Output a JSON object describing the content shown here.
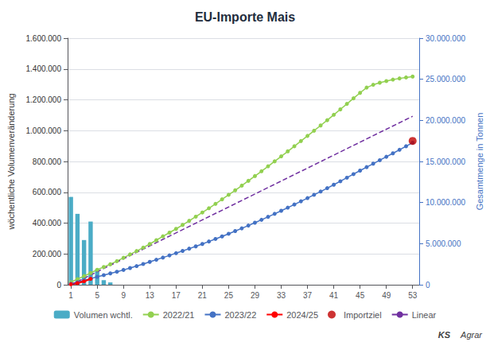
{
  "chart_data": {
    "type": "bar",
    "title": "EU-Importe Mais",
    "ylabel": "wöchentliche Volumenveränderung",
    "y2label": "Gesamtmenge in Tonnen",
    "xlim": [
      0.5,
      54
    ],
    "xticks": [
      1,
      5,
      9,
      13,
      17,
      21,
      25,
      29,
      33,
      37,
      41,
      45,
      49,
      53
    ],
    "ylim": [
      0,
      1600000
    ],
    "yticks": [
      0,
      {
        "value": 200000,
        "label": "200.000"
      },
      {
        "value": 400000,
        "label": "400.000"
      },
      {
        "value": 600000,
        "label": "600.000"
      },
      {
        "value": 800000,
        "label": "800.000"
      },
      {
        "value": 1000000,
        "label": "1.000.000"
      },
      {
        "value": 1200000,
        "label": "1.200.000"
      },
      {
        "value": 1400000,
        "label": "1.400.000"
      },
      {
        "value": 1600000,
        "label": "1.600.000"
      }
    ],
    "y2lim": [
      0,
      30000000
    ],
    "y2ticks": [
      0,
      {
        "value": 5000000,
        "label": "5.000.000"
      },
      {
        "value": 10000000,
        "label": "10.000.000"
      },
      {
        "value": 15000000,
        "label": "15.000.000"
      },
      {
        "value": 20000000,
        "label": "20.000.000"
      },
      {
        "value": 25000000,
        "label": "25.000.000"
      },
      {
        "value": 30000000,
        "label": "30.000.000"
      }
    ],
    "grid": true,
    "legend": "bottom",
    "annotations": [
      "KS",
      "Agrar"
    ],
    "series": [
      {
        "name": "Volumen wchtl.",
        "type": "bar",
        "color": "#4bacc6",
        "x": [
          1,
          2,
          3,
          4,
          5,
          6,
          7
        ],
        "values": [
          570000,
          460000,
          290000,
          410000,
          100000,
          30000,
          15000
        ]
      },
      {
        "name": "2022/21",
        "type": "line",
        "axis": "y2",
        "color": "#92d050",
        "marker": "circle",
        "x": [
          1,
          2,
          3,
          4,
          5,
          6,
          7,
          8,
          9,
          10,
          11,
          12,
          13,
          14,
          15,
          16,
          17,
          18,
          19,
          20,
          21,
          22,
          23,
          24,
          25,
          26,
          27,
          28,
          29,
          30,
          31,
          32,
          33,
          34,
          35,
          36,
          37,
          38,
          39,
          40,
          41,
          42,
          43,
          44,
          45,
          46,
          47,
          48,
          49,
          50,
          51,
          52,
          53
        ],
        "values": [
          320000,
          680000,
          1050000,
          1430000,
          1820000,
          2160000,
          2490000,
          2870000,
          3280000,
          3690000,
          4100000,
          4510000,
          4960000,
          5420000,
          5890000,
          6340000,
          6800000,
          7280000,
          7780000,
          8280000,
          8790000,
          9310000,
          9840000,
          10390000,
          10940000,
          11490000,
          12060000,
          12640000,
          13220000,
          13810000,
          14410000,
          15010000,
          15620000,
          16230000,
          16850000,
          17480000,
          18110000,
          18740000,
          19380000,
          20020000,
          20680000,
          21340000,
          22010000,
          22680000,
          23350000,
          23990000,
          24330000,
          24580000,
          24780000,
          24960000,
          25100000,
          25220000,
          25330000
        ]
      },
      {
        "name": "2023/22",
        "type": "line",
        "axis": "y2",
        "color": "#4472c4",
        "marker": "circle",
        "x": [
          1,
          2,
          3,
          4,
          5,
          6,
          7,
          8,
          9,
          10,
          11,
          12,
          13,
          14,
          15,
          16,
          17,
          18,
          19,
          20,
          21,
          22,
          23,
          24,
          25,
          26,
          27,
          28,
          29,
          30,
          31,
          32,
          33,
          34,
          35,
          36,
          37,
          38,
          39,
          40,
          41,
          42,
          43,
          44,
          45,
          46,
          47,
          48,
          49,
          50,
          51,
          52,
          53
        ],
        "values": [
          130000,
          310000,
          520000,
          740000,
          960000,
          1170000,
          1380000,
          1580000,
          1800000,
          2030000,
          2270000,
          2520000,
          2780000,
          3040000,
          3300000,
          3570000,
          3840000,
          4110000,
          4390000,
          4670000,
          4960000,
          5260000,
          5570000,
          5880000,
          6200000,
          6530000,
          6860000,
          7200000,
          7550000,
          7900000,
          8260000,
          8630000,
          9000000,
          9380000,
          9760000,
          10150000,
          10540000,
          10940000,
          11340000,
          11750000,
          12170000,
          12590000,
          13020000,
          13460000,
          13890000,
          14310000,
          14730000,
          15150000,
          15570000,
          15990000,
          16420000,
          16850000,
          17280000
        ]
      },
      {
        "name": "2024/25",
        "type": "line",
        "axis": "y2",
        "color": "#ff0000",
        "marker": "circle",
        "x": [
          1,
          2,
          3,
          4
        ],
        "values": [
          65000,
          200000,
          420000,
          720000
        ]
      },
      {
        "name": "Importziel",
        "type": "scatter",
        "axis": "y2",
        "color": "#c00000",
        "marker": "circle",
        "x": [
          53
        ],
        "values": [
          17500000
        ]
      },
      {
        "name": "Linear",
        "type": "line",
        "axis": "y2",
        "color": "#7030a0",
        "line_style": "dashed",
        "x": [
          1,
          53
        ],
        "values": [
          0,
          20500000
        ]
      }
    ]
  }
}
